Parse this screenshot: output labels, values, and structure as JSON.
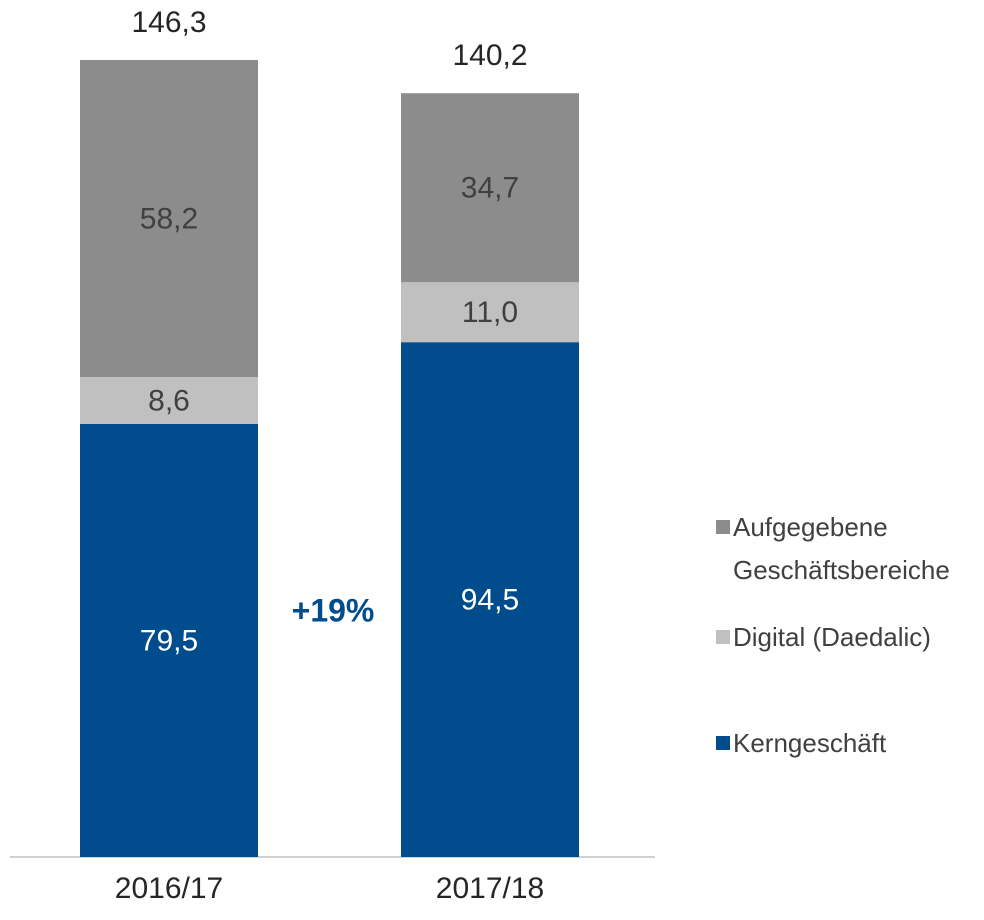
{
  "chart_data": {
    "type": "stacked_bar",
    "categories": [
      "2016/17",
      "2017/18"
    ],
    "series": [
      {
        "name": "Kerngeschäft",
        "color": "#004c8c",
        "values": [
          79.5,
          94.5
        ],
        "value_labels": [
          "79,5",
          "94,5"
        ]
      },
      {
        "name": "Digital (Daedalic)",
        "color": "#c0c0c0",
        "values": [
          8.6,
          11.0
        ],
        "value_labels": [
          "8,6",
          "11,0"
        ]
      },
      {
        "name": "Aufgegebene Geschäftsbereiche",
        "color": "#8c8c8c",
        "values": [
          58.2,
          34.7
        ],
        "value_labels": [
          "58,2",
          "34,7"
        ]
      }
    ],
    "totals": [
      146.3,
      140.2
    ],
    "total_labels": [
      "146,3",
      "140,2"
    ],
    "annotation": "+19%",
    "annotation_color": "#004c8c"
  }
}
